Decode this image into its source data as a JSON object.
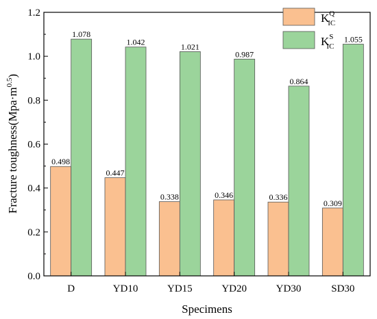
{
  "chart_data": {
    "type": "bar",
    "categories": [
      "D",
      "YD10",
      "YD15",
      "YD20",
      "YD30",
      "SD30"
    ],
    "series": [
      {
        "name": "K_IC^Q",
        "label_main": "K",
        "label_sub": "IC",
        "label_sup": "Q",
        "color": "#fac090",
        "values": [
          0.498,
          0.447,
          0.338,
          0.346,
          0.336,
          0.309
        ]
      },
      {
        "name": "K_IC^S",
        "label_main": "K",
        "label_sub": "IC",
        "label_sup": "S",
        "color": "#9bd49b",
        "values": [
          1.078,
          1.042,
          1.021,
          0.987,
          0.864,
          1.055
        ]
      }
    ],
    "value_labels": [
      [
        "0.498",
        "0.447",
        "0.338",
        "0.346",
        "0.336",
        "0.309"
      ],
      [
        "1.078",
        "1.042",
        "1.021",
        "0.987",
        "0.864",
        "1.055"
      ]
    ],
    "xlabel": "Specimens",
    "ylabel_main": "Fracture toughness(Mpa·m",
    "ylabel_sup": "0.5",
    "ylabel_close": ")",
    "ylim": [
      0,
      1.2
    ],
    "yticks": [
      0,
      0.2,
      0.4,
      0.6,
      0.8,
      1.0,
      1.2
    ],
    "ytick_labels": [
      "0.0",
      "0.2",
      "0.4",
      "0.6",
      "0.8",
      "1.0",
      "1.2"
    ],
    "grid": false,
    "legend_position": "top-right"
  }
}
